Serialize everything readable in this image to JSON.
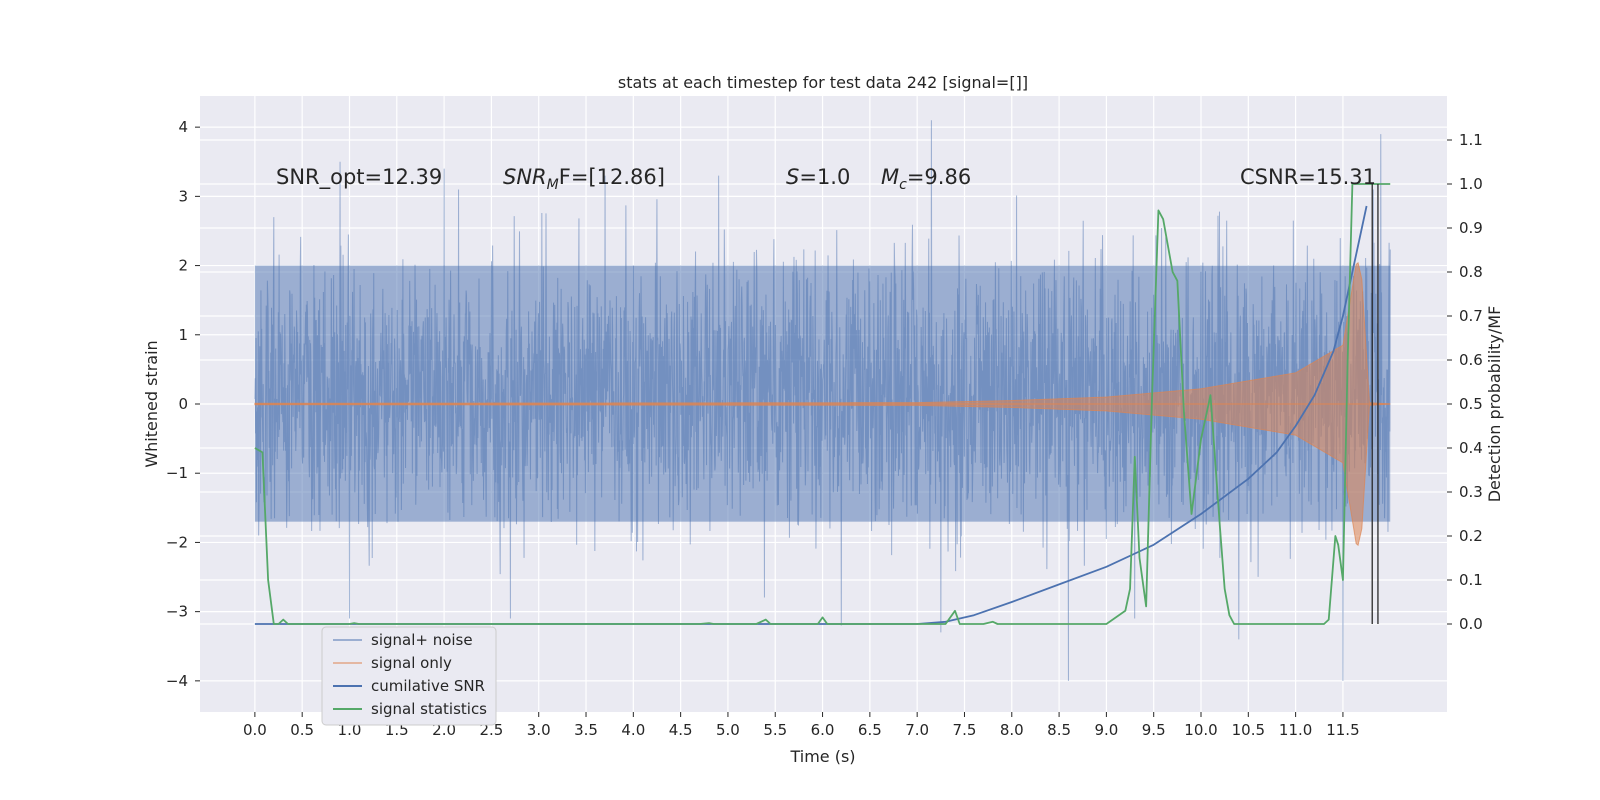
{
  "chart_data": {
    "type": "line",
    "title": "stats at each timestep for test data 242 [signal=[]]",
    "xlabel": "Time (s)",
    "ylabel_left": "Whitened strain",
    "ylabel_right": "Detection probability/MF",
    "xlim": [
      -0.58,
      12.6
    ],
    "ylim_left": [
      -4.45,
      4.45
    ],
    "ylim_right": [
      -0.2,
      1.2
    ],
    "x_ticks": [
      "0.0",
      "0.5",
      "1.0",
      "1.5",
      "2.0",
      "2.5",
      "3.0",
      "3.5",
      "4.0",
      "4.5",
      "5.0",
      "5.5",
      "6.0",
      "6.5",
      "7.0",
      "7.5",
      "8.0",
      "8.5",
      "9.0",
      "9.5",
      "10.0",
      "10.5",
      "11.0",
      "11.5"
    ],
    "y_ticks_left": [
      "4",
      "3",
      "2",
      "1",
      "0",
      "−1",
      "−2",
      "−3",
      "−4"
    ],
    "y_ticks_right": [
      "1.1",
      "1.0",
      "0.9",
      "0.8",
      "0.7",
      "0.6",
      "0.5",
      "0.4",
      "0.3",
      "0.2",
      "0.1",
      "0.0"
    ],
    "grid": true,
    "legend_position": "lower-left",
    "annotations": {
      "snr_opt": "SNR_opt=12.39",
      "snr_mf": "SNR",
      "snr_mf_sub": "M",
      "snr_mf_rest": "F=[12.86]",
      "s_label": "S",
      "s_value": "=1.0",
      "mc_label": "M",
      "mc_sub": "c",
      "mc_value": "=9.86",
      "csnr": "CSNR=15.31"
    },
    "series": [
      {
        "name": "signal+ noise",
        "axis": "left",
        "color": "#4c72b0",
        "kind": "noise",
        "x_range": [
          0.0,
          12.0
        ],
        "typical_band": [
          -1.7,
          2.0
        ],
        "extremes": [
          {
            "x": 0.2,
            "y": 2.7
          },
          {
            "x": 0.9,
            "y": 3.5
          },
          {
            "x": 1.0,
            "y": -3.1
          },
          {
            "x": 2.0,
            "y": 3.4
          },
          {
            "x": 2.7,
            "y": -3.1
          },
          {
            "x": 3.7,
            "y": 3.3
          },
          {
            "x": 4.9,
            "y": 3.3
          },
          {
            "x": 6.2,
            "y": -3.2
          },
          {
            "x": 7.15,
            "y": 4.1
          },
          {
            "x": 7.25,
            "y": -3.3
          },
          {
            "x": 8.6,
            "y": -4.0
          },
          {
            "x": 9.3,
            "y": -3.1
          },
          {
            "x": 10.4,
            "y": -3.4
          },
          {
            "x": 11.5,
            "y": -4.0
          },
          {
            "x": 11.9,
            "y": 3.9
          }
        ]
      },
      {
        "name": "signal only",
        "axis": "left",
        "color": "#dd8452",
        "kind": "chirp",
        "amplitude_envelope": [
          {
            "x": 0.0,
            "y": 0.01
          },
          {
            "x": 7.0,
            "y": 0.02
          },
          {
            "x": 8.0,
            "y": 0.05
          },
          {
            "x": 9.0,
            "y": 0.1
          },
          {
            "x": 10.0,
            "y": 0.22
          },
          {
            "x": 11.0,
            "y": 0.45
          },
          {
            "x": 11.5,
            "y": 0.85
          },
          {
            "x": 11.65,
            "y": 2.1
          },
          {
            "x": 11.7,
            "y": 1.8
          },
          {
            "x": 11.78,
            "y": 0.02
          },
          {
            "x": 12.0,
            "y": 0.0
          }
        ]
      },
      {
        "name": "cumilative SNR",
        "axis": "right",
        "color": "#4c72b0",
        "x": [
          0.0,
          7.0,
          7.3,
          7.6,
          8.0,
          8.5,
          9.0,
          9.5,
          10.0,
          10.5,
          10.8,
          11.0,
          11.2,
          11.4,
          11.5,
          11.6,
          11.7,
          11.75
        ],
        "y": [
          0.0,
          0.0,
          0.005,
          0.02,
          0.05,
          0.09,
          0.13,
          0.18,
          0.25,
          0.33,
          0.39,
          0.45,
          0.52,
          0.62,
          0.7,
          0.8,
          0.9,
          0.95
        ]
      },
      {
        "name": "signal statistics",
        "axis": "right",
        "color": "#55a868",
        "x": [
          0.0,
          0.08,
          0.14,
          0.2,
          0.25,
          0.3,
          0.35,
          1.0,
          1.05,
          1.1,
          4.7,
          4.8,
          4.85,
          5.3,
          5.4,
          5.45,
          5.95,
          6.0,
          6.05,
          7.3,
          7.4,
          7.45,
          7.5,
          7.7,
          7.8,
          7.85,
          9.0,
          9.2,
          9.25,
          9.3,
          9.35,
          9.42,
          9.48,
          9.55,
          9.6,
          9.7,
          9.75,
          9.82,
          9.9,
          10.0,
          10.1,
          10.2,
          10.25,
          10.3,
          10.35,
          10.4,
          11.3,
          11.35,
          11.42,
          11.45,
          11.5,
          11.55,
          11.6,
          11.65,
          11.7,
          11.78,
          12.0
        ],
        "y": [
          0.4,
          0.39,
          0.1,
          0.0,
          0.0,
          0.01,
          0.0,
          0.0,
          0.002,
          0.0,
          0.0,
          0.002,
          0.0,
          0.0,
          0.01,
          0.0,
          0.0,
          0.015,
          0.0,
          0.0,
          0.03,
          0.0,
          0.0,
          0.0,
          0.005,
          0.0,
          0.0,
          0.03,
          0.08,
          0.38,
          0.15,
          0.04,
          0.5,
          0.94,
          0.92,
          0.8,
          0.78,
          0.48,
          0.25,
          0.42,
          0.52,
          0.22,
          0.08,
          0.02,
          0.0,
          0.0,
          0.0,
          0.01,
          0.2,
          0.18,
          0.1,
          0.6,
          1.0,
          1.0,
          1.0,
          1.0,
          1.0
        ]
      },
      {
        "name": "",
        "axis": "right",
        "color": "#262626",
        "kind": "vertical-markers",
        "x": [
          11.81,
          11.87
        ],
        "y_range": [
          0.0,
          1.0
        ]
      }
    ]
  }
}
